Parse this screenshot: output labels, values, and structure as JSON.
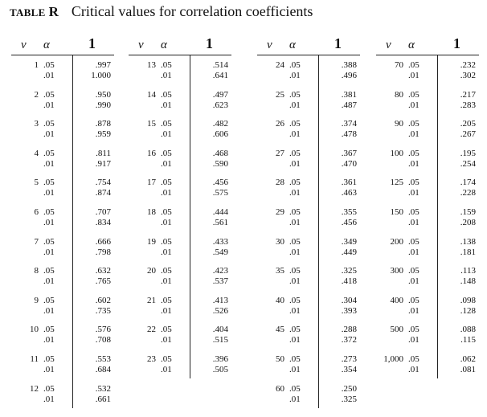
{
  "title": {
    "label": "TABLE",
    "letter": "R",
    "caption": "Critical values for correlation coefficients"
  },
  "header": {
    "nu": "ν",
    "alpha": "α",
    "col": "1"
  },
  "blocks": [
    {
      "groups": [
        {
          "nu": "1",
          "a1": ".05",
          "a2": ".01",
          "v1": ".997",
          "v2": "1.000"
        },
        {
          "nu": "2",
          "a1": ".05",
          "a2": ".01",
          "v1": ".950",
          "v2": ".990"
        },
        {
          "nu": "3",
          "a1": ".05",
          "a2": ".01",
          "v1": ".878",
          "v2": ".959"
        },
        {
          "nu": "4",
          "a1": ".05",
          "a2": ".01",
          "v1": ".811",
          "v2": ".917"
        },
        {
          "nu": "5",
          "a1": ".05",
          "a2": ".01",
          "v1": ".754",
          "v2": ".874"
        },
        {
          "nu": "6",
          "a1": ".05",
          "a2": ".01",
          "v1": ".707",
          "v2": ".834"
        },
        {
          "nu": "7",
          "a1": ".05",
          "a2": ".01",
          "v1": ".666",
          "v2": ".798"
        },
        {
          "nu": "8",
          "a1": ".05",
          "a2": ".01",
          "v1": ".632",
          "v2": ".765"
        },
        {
          "nu": "9",
          "a1": ".05",
          "a2": ".01",
          "v1": ".602",
          "v2": ".735"
        },
        {
          "nu": "10",
          "a1": ".05",
          "a2": ".01",
          "v1": ".576",
          "v2": ".708"
        },
        {
          "nu": "11",
          "a1": ".05",
          "a2": ".01",
          "v1": ".553",
          "v2": ".684"
        },
        {
          "nu": "12",
          "a1": ".05",
          "a2": ".01",
          "v1": ".532",
          "v2": ".661"
        }
      ]
    },
    {
      "groups": [
        {
          "nu": "13",
          "a1": ".05",
          "a2": ".01",
          "v1": ".514",
          "v2": ".641"
        },
        {
          "nu": "14",
          "a1": ".05",
          "a2": ".01",
          "v1": ".497",
          "v2": ".623"
        },
        {
          "nu": "15",
          "a1": ".05",
          "a2": ".01",
          "v1": ".482",
          "v2": ".606"
        },
        {
          "nu": "16",
          "a1": ".05",
          "a2": ".01",
          "v1": ".468",
          "v2": ".590"
        },
        {
          "nu": "17",
          "a1": ".05",
          "a2": ".01",
          "v1": ".456",
          "v2": ".575"
        },
        {
          "nu": "18",
          "a1": ".05",
          "a2": ".01",
          "v1": ".444",
          "v2": ".561"
        },
        {
          "nu": "19",
          "a1": ".05",
          "a2": ".01",
          "v1": ".433",
          "v2": ".549"
        },
        {
          "nu": "20",
          "a1": ".05",
          "a2": ".01",
          "v1": ".423",
          "v2": ".537"
        },
        {
          "nu": "21",
          "a1": ".05",
          "a2": ".01",
          "v1": ".413",
          "v2": ".526"
        },
        {
          "nu": "22",
          "a1": ".05",
          "a2": ".01",
          "v1": ".404",
          "v2": ".515"
        },
        {
          "nu": "23",
          "a1": ".05",
          "a2": ".01",
          "v1": ".396",
          "v2": ".505"
        }
      ]
    },
    {
      "groups": [
        {
          "nu": "24",
          "a1": ".05",
          "a2": ".01",
          "v1": ".388",
          "v2": ".496"
        },
        {
          "nu": "25",
          "a1": ".05",
          "a2": ".01",
          "v1": ".381",
          "v2": ".487"
        },
        {
          "nu": "26",
          "a1": ".05",
          "a2": ".01",
          "v1": ".374",
          "v2": ".478"
        },
        {
          "nu": "27",
          "a1": ".05",
          "a2": ".01",
          "v1": ".367",
          "v2": ".470"
        },
        {
          "nu": "28",
          "a1": ".05",
          "a2": ".01",
          "v1": ".361",
          "v2": ".463"
        },
        {
          "nu": "29",
          "a1": ".05",
          "a2": ".01",
          "v1": ".355",
          "v2": ".456"
        },
        {
          "nu": "30",
          "a1": ".05",
          "a2": ".01",
          "v1": ".349",
          "v2": ".449"
        },
        {
          "nu": "35",
          "a1": ".05",
          "a2": ".01",
          "v1": ".325",
          "v2": ".418"
        },
        {
          "nu": "40",
          "a1": ".05",
          "a2": ".01",
          "v1": ".304",
          "v2": ".393"
        },
        {
          "nu": "45",
          "a1": ".05",
          "a2": ".01",
          "v1": ".288",
          "v2": ".372"
        },
        {
          "nu": "50",
          "a1": ".05",
          "a2": ".01",
          "v1": ".273",
          "v2": ".354"
        },
        {
          "nu": "60",
          "a1": ".05",
          "a2": ".01",
          "v1": ".250",
          "v2": ".325"
        }
      ]
    },
    {
      "groups": [
        {
          "nu": "70",
          "a1": ".05",
          "a2": ".01",
          "v1": ".232",
          "v2": ".302"
        },
        {
          "nu": "80",
          "a1": ".05",
          "a2": ".01",
          "v1": ".217",
          "v2": ".283"
        },
        {
          "nu": "90",
          "a1": ".05",
          "a2": ".01",
          "v1": ".205",
          "v2": ".267"
        },
        {
          "nu": "100",
          "a1": ".05",
          "a2": ".01",
          "v1": ".195",
          "v2": ".254"
        },
        {
          "nu": "125",
          "a1": ".05",
          "a2": ".01",
          "v1": ".174",
          "v2": ".228"
        },
        {
          "nu": "150",
          "a1": ".05",
          "a2": ".01",
          "v1": ".159",
          "v2": ".208"
        },
        {
          "nu": "200",
          "a1": ".05",
          "a2": ".01",
          "v1": ".138",
          "v2": ".181"
        },
        {
          "nu": "300",
          "a1": ".05",
          "a2": ".01",
          "v1": ".113",
          "v2": ".148"
        },
        {
          "nu": "400",
          "a1": ".05",
          "a2": ".01",
          "v1": ".098",
          "v2": ".128"
        },
        {
          "nu": "500",
          "a1": ".05",
          "a2": ".01",
          "v1": ".088",
          "v2": ".115"
        },
        {
          "nu": "1,000",
          "a1": ".05",
          "a2": ".01",
          "v1": ".062",
          "v2": ".081"
        }
      ]
    }
  ]
}
